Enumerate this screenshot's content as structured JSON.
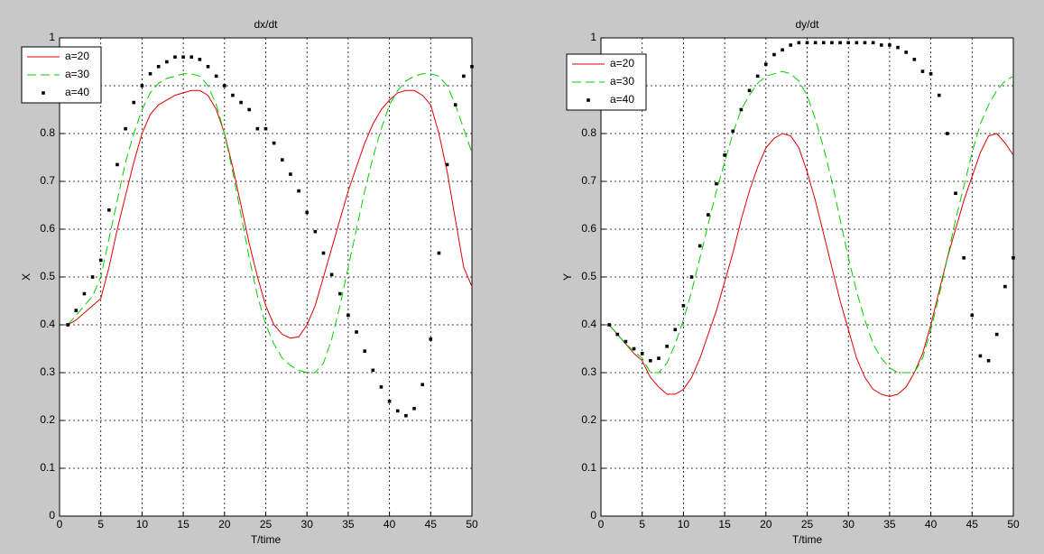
{
  "chart_data": [
    {
      "type": "line",
      "title": "dx/dt",
      "xlabel": "T/time",
      "ylabel": "X",
      "x": [
        1,
        2,
        3,
        4,
        5,
        6,
        7,
        8,
        9,
        10,
        11,
        12,
        13,
        14,
        15,
        16,
        17,
        18,
        19,
        20,
        21,
        22,
        23,
        24,
        25,
        26,
        27,
        28,
        29,
        30,
        31,
        32,
        33,
        34,
        35,
        36,
        37,
        38,
        39,
        40,
        41,
        42,
        43,
        44,
        45,
        46,
        47,
        48,
        49,
        50
      ],
      "series": [
        {
          "name": "a=20",
          "color": "#e00000",
          "style": "solid",
          "values": [
            0.4,
            0.41,
            0.425,
            0.44,
            0.455,
            0.52,
            0.6,
            0.67,
            0.74,
            0.8,
            0.84,
            0.86,
            0.87,
            0.88,
            0.885,
            0.89,
            0.89,
            0.88,
            0.85,
            0.8,
            0.73,
            0.65,
            0.57,
            0.5,
            0.44,
            0.4,
            0.38,
            0.372,
            0.375,
            0.4,
            0.44,
            0.5,
            0.56,
            0.62,
            0.68,
            0.73,
            0.78,
            0.82,
            0.85,
            0.87,
            0.885,
            0.89,
            0.89,
            0.88,
            0.86,
            0.8,
            0.72,
            0.62,
            0.52,
            0.48
          ]
        },
        {
          "name": "a=30",
          "color": "#00d000",
          "style": "dashed",
          "values": [
            0.4,
            0.42,
            0.44,
            0.46,
            0.5,
            0.58,
            0.66,
            0.74,
            0.8,
            0.85,
            0.885,
            0.905,
            0.915,
            0.92,
            0.925,
            0.925,
            0.92,
            0.9,
            0.86,
            0.8,
            0.72,
            0.63,
            0.54,
            0.46,
            0.4,
            0.36,
            0.33,
            0.315,
            0.305,
            0.3,
            0.3,
            0.32,
            0.37,
            0.44,
            0.52,
            0.6,
            0.68,
            0.75,
            0.81,
            0.86,
            0.89,
            0.91,
            0.92,
            0.925,
            0.925,
            0.92,
            0.9,
            0.86,
            0.81,
            0.76
          ]
        },
        {
          "name": "a=40",
          "color": "#000000",
          "style": "dots",
          "values": [
            0.4,
            0.43,
            0.465,
            0.5,
            0.535,
            0.64,
            0.735,
            0.81,
            0.865,
            0.9,
            0.925,
            0.94,
            0.95,
            0.96,
            0.96,
            0.96,
            0.955,
            0.94,
            0.92,
            0.9,
            0.88,
            0.865,
            0.85,
            0.81,
            0.81,
            0.78,
            0.745,
            0.715,
            0.68,
            0.635,
            0.595,
            0.55,
            0.505,
            0.465,
            0.42,
            0.385,
            0.345,
            0.305,
            0.27,
            0.24,
            0.22,
            0.21,
            0.225,
            0.275,
            0.37,
            0.55,
            0.735,
            0.86,
            0.92,
            0.94
          ]
        }
      ],
      "xlim": [
        0,
        50
      ],
      "ylim": [
        0,
        1
      ],
      "xticks": [
        0,
        5,
        10,
        15,
        20,
        25,
        30,
        35,
        40,
        45,
        50
      ],
      "yticks": [
        0,
        0.1,
        0.2,
        0.3,
        0.4,
        0.5,
        0.6,
        0.7,
        0.8,
        0.9,
        1
      ],
      "grid": true,
      "legend": "upper left"
    },
    {
      "type": "line",
      "title": "dy/dt",
      "xlabel": "T/time",
      "ylabel": "Y",
      "x": [
        1,
        2,
        3,
        4,
        5,
        6,
        7,
        8,
        9,
        10,
        11,
        12,
        13,
        14,
        15,
        16,
        17,
        18,
        19,
        20,
        21,
        22,
        23,
        24,
        25,
        26,
        27,
        28,
        29,
        30,
        31,
        32,
        33,
        34,
        35,
        36,
        37,
        38,
        39,
        40,
        41,
        42,
        43,
        44,
        45,
        46,
        47,
        48,
        49,
        50
      ],
      "series": [
        {
          "name": "a=20",
          "color": "#e00000",
          "style": "solid",
          "values": [
            0.4,
            0.38,
            0.36,
            0.34,
            0.325,
            0.29,
            0.27,
            0.255,
            0.255,
            0.265,
            0.29,
            0.33,
            0.38,
            0.43,
            0.49,
            0.55,
            0.62,
            0.68,
            0.73,
            0.77,
            0.79,
            0.8,
            0.795,
            0.77,
            0.72,
            0.66,
            0.59,
            0.52,
            0.45,
            0.39,
            0.33,
            0.29,
            0.265,
            0.255,
            0.25,
            0.255,
            0.27,
            0.3,
            0.34,
            0.4,
            0.47,
            0.54,
            0.6,
            0.66,
            0.71,
            0.76,
            0.795,
            0.8,
            0.78,
            0.755
          ]
        },
        {
          "name": "a=30",
          "color": "#00d000",
          "style": "dashed",
          "values": [
            0.4,
            0.38,
            0.36,
            0.345,
            0.33,
            0.3,
            0.3,
            0.32,
            0.36,
            0.41,
            0.47,
            0.54,
            0.61,
            0.68,
            0.74,
            0.8,
            0.85,
            0.88,
            0.905,
            0.92,
            0.925,
            0.93,
            0.925,
            0.91,
            0.88,
            0.83,
            0.77,
            0.7,
            0.62,
            0.54,
            0.47,
            0.41,
            0.36,
            0.33,
            0.31,
            0.3,
            0.3,
            0.3,
            0.33,
            0.39,
            0.46,
            0.54,
            0.62,
            0.69,
            0.76,
            0.82,
            0.86,
            0.89,
            0.91,
            0.92
          ]
        },
        {
          "name": "a=40",
          "color": "#000000",
          "style": "dots",
          "values": [
            0.4,
            0.38,
            0.365,
            0.35,
            0.34,
            0.325,
            0.33,
            0.355,
            0.39,
            0.44,
            0.5,
            0.565,
            0.63,
            0.695,
            0.755,
            0.805,
            0.85,
            0.89,
            0.92,
            0.945,
            0.965,
            0.975,
            0.985,
            0.99,
            0.99,
            0.99,
            0.99,
            0.99,
            0.99,
            0.99,
            0.99,
            0.99,
            0.99,
            0.985,
            0.985,
            0.98,
            0.97,
            0.955,
            0.93,
            0.925,
            0.88,
            0.8,
            0.675,
            0.54,
            0.42,
            0.335,
            0.325,
            0.38,
            0.48,
            0.54
          ]
        }
      ],
      "xlim": [
        0,
        50
      ],
      "ylim": [
        0,
        1
      ],
      "xticks": [
        0,
        5,
        10,
        15,
        20,
        25,
        30,
        35,
        40,
        45,
        50
      ],
      "yticks": [
        0,
        0.1,
        0.2,
        0.3,
        0.4,
        0.5,
        0.6,
        0.7,
        0.8,
        0.9,
        1
      ],
      "grid": true,
      "legend": "upper left"
    }
  ]
}
